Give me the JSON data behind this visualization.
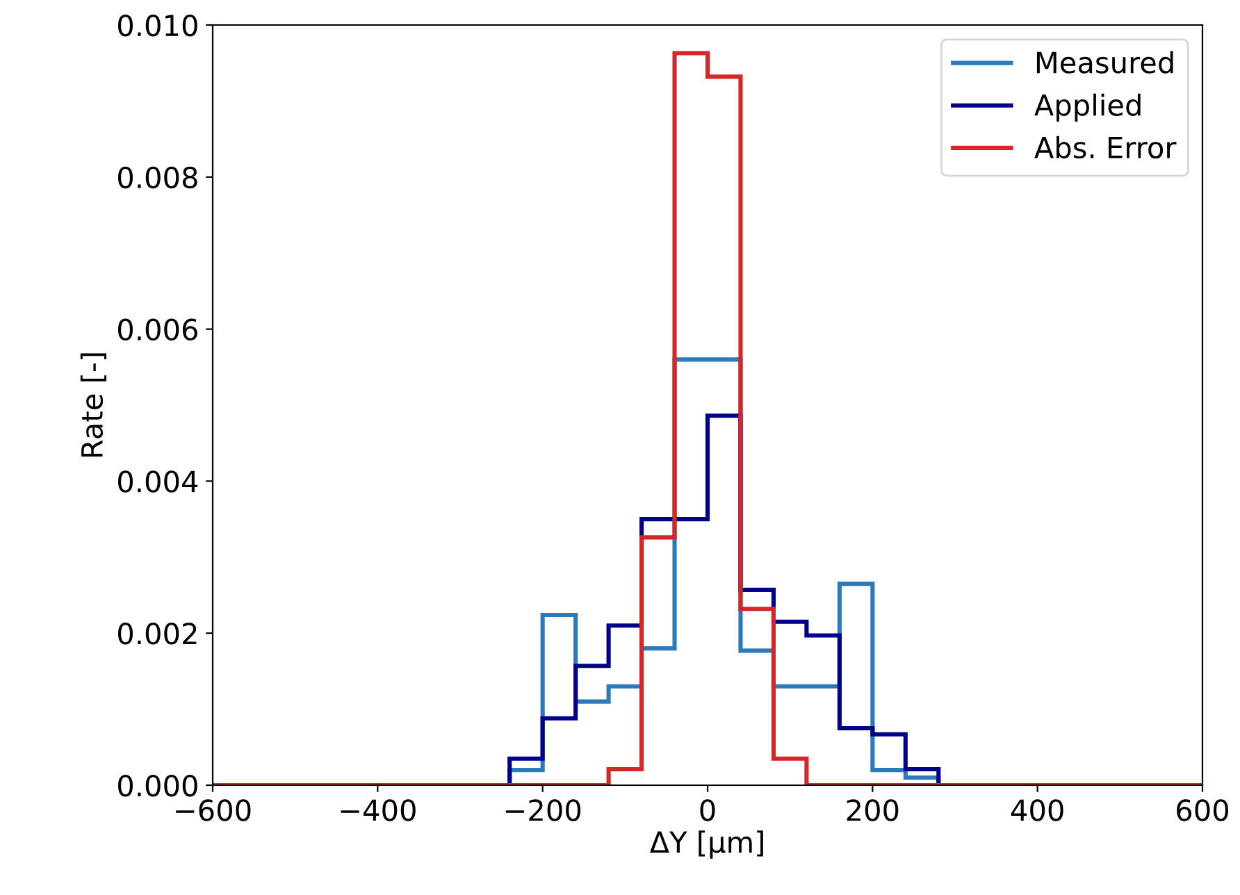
{
  "chart_data": {
    "type": "histogram",
    "xlabel": "ΔY [µm]",
    "ylabel": "Rate [-]",
    "bins": [
      -600,
      -560,
      -520,
      -480,
      -440,
      -400,
      -360,
      -320,
      -280,
      -240,
      -200,
      -160,
      -120,
      -80,
      -40,
      0,
      40,
      80,
      120,
      160,
      200,
      240,
      280,
      320,
      360,
      400,
      440,
      480,
      520,
      560,
      600
    ],
    "series": [
      {
        "name": "Measured",
        "color": "#2b7bba",
        "values": [
          0,
          0,
          0,
          0,
          0,
          0,
          0,
          0,
          0,
          0.0002,
          0.00224,
          0.0011,
          0.0013,
          0.0018,
          0.0056,
          0.0056,
          0.00177,
          0.0013,
          0.0013,
          0.00265,
          0.0002,
          0.0001,
          0,
          0,
          0,
          0,
          0,
          0,
          0,
          0
        ]
      },
      {
        "name": "Applied",
        "color": "#00008b",
        "values": [
          0,
          0,
          0,
          0,
          0,
          0,
          0,
          0,
          0,
          0.00035,
          0.00088,
          0.00157,
          0.0021,
          0.0035,
          0.0035,
          0.00486,
          0.00257,
          0.00215,
          0.00197,
          0.00075,
          0.00067,
          0.00021,
          0,
          0,
          0,
          0,
          0,
          0,
          0,
          0
        ]
      },
      {
        "name": "Abs. Error",
        "color": "#d62728",
        "values": [
          0,
          0,
          0,
          0,
          0,
          0,
          0,
          0,
          0,
          0,
          0,
          0,
          0.00021,
          0.00326,
          0.00963,
          0.00932,
          0.00232,
          0.00035,
          0,
          0,
          0,
          0,
          0,
          0,
          0,
          0,
          0,
          0,
          0,
          0
        ]
      }
    ],
    "xlim": [
      -600,
      600
    ],
    "xticks": [
      {
        "value": -600,
        "label": "−600"
      },
      {
        "value": -400,
        "label": "−400"
      },
      {
        "value": -200,
        "label": "−200"
      },
      0,
      200,
      400,
      600
    ],
    "ylim": [
      0,
      0.01
    ],
    "yticks": [
      {
        "value": 0,
        "label": "0.000"
      },
      {
        "value": 0.002,
        "label": "0.002"
      },
      {
        "value": 0.004,
        "label": "0.004"
      },
      {
        "value": 0.006,
        "label": "0.006"
      },
      {
        "value": 0.008,
        "label": "0.008"
      },
      {
        "value": 0.01,
        "label": "0.010"
      }
    ],
    "legend": "top right",
    "grid": false
  }
}
